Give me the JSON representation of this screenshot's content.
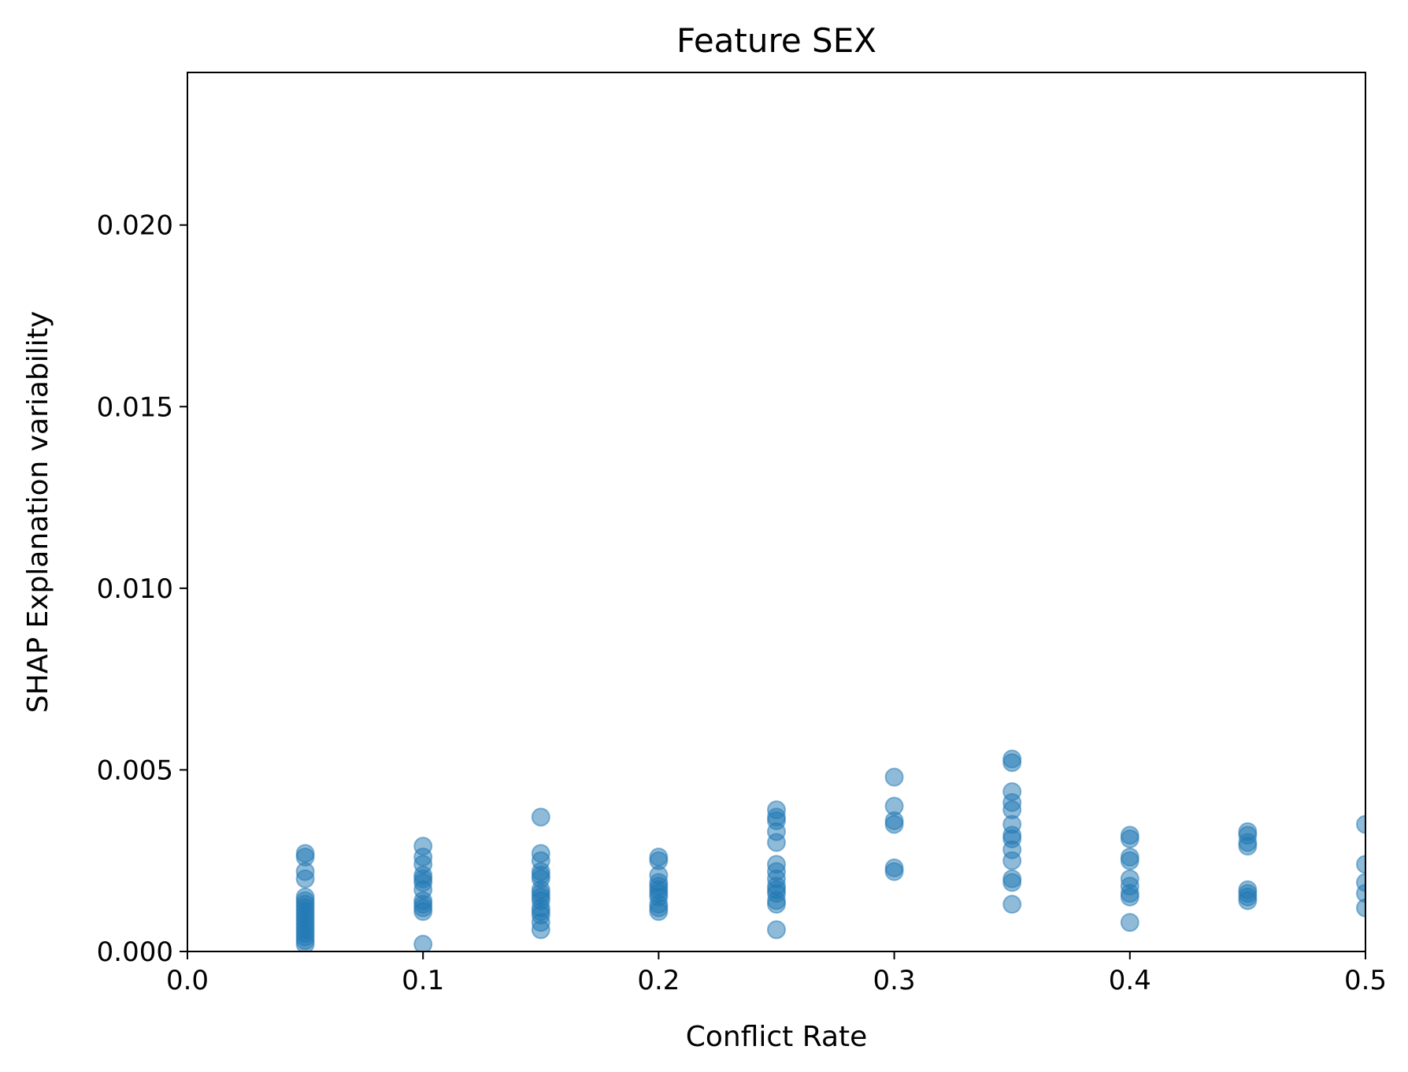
{
  "chart_data": {
    "type": "scatter",
    "title": "Feature SEX",
    "xlabel": "Conflict Rate",
    "ylabel": "SHAP Explanation variability",
    "xlim": [
      0.0,
      0.5
    ],
    "ylim": [
      0.0,
      0.0242
    ],
    "xticks": [
      {
        "value": 0.0,
        "label": "0.0"
      },
      {
        "value": 0.1,
        "label": "0.1"
      },
      {
        "value": 0.2,
        "label": "0.2"
      },
      {
        "value": 0.3,
        "label": "0.3"
      },
      {
        "value": 0.4,
        "label": "0.4"
      },
      {
        "value": 0.5,
        "label": "0.5"
      }
    ],
    "yticks": [
      {
        "value": 0.0,
        "label": "0.000"
      },
      {
        "value": 0.005,
        "label": "0.005"
      },
      {
        "value": 0.01,
        "label": "0.010"
      },
      {
        "value": 0.015,
        "label": "0.015"
      },
      {
        "value": 0.02,
        "label": "0.020"
      }
    ],
    "grid": false,
    "marker_color": "#1f77b4",
    "marker_alpha": 0.5,
    "points": [
      [
        0.05,
        0.0027
      ],
      [
        0.05,
        0.0026
      ],
      [
        0.05,
        0.0022
      ],
      [
        0.05,
        0.002
      ],
      [
        0.05,
        0.0015
      ],
      [
        0.05,
        0.0014
      ],
      [
        0.05,
        0.0013
      ],
      [
        0.05,
        0.0012
      ],
      [
        0.05,
        0.0011
      ],
      [
        0.05,
        0.001
      ],
      [
        0.05,
        0.0009
      ],
      [
        0.05,
        0.0008
      ],
      [
        0.05,
        0.0007
      ],
      [
        0.05,
        0.0006
      ],
      [
        0.05,
        0.0005
      ],
      [
        0.05,
        0.0004
      ],
      [
        0.05,
        0.0003
      ],
      [
        0.05,
        0.0002
      ],
      [
        0.1,
        0.0029
      ],
      [
        0.1,
        0.0026
      ],
      [
        0.1,
        0.0024
      ],
      [
        0.1,
        0.0021
      ],
      [
        0.1,
        0.002
      ],
      [
        0.1,
        0.0019
      ],
      [
        0.1,
        0.0017
      ],
      [
        0.1,
        0.0014
      ],
      [
        0.1,
        0.0013
      ],
      [
        0.1,
        0.0012
      ],
      [
        0.1,
        0.0011
      ],
      [
        0.1,
        0.0002
      ],
      [
        0.15,
        0.0037
      ],
      [
        0.15,
        0.0027
      ],
      [
        0.15,
        0.0025
      ],
      [
        0.15,
        0.0022
      ],
      [
        0.15,
        0.0021
      ],
      [
        0.15,
        0.002
      ],
      [
        0.15,
        0.0017
      ],
      [
        0.15,
        0.0016
      ],
      [
        0.15,
        0.0015
      ],
      [
        0.15,
        0.0014
      ],
      [
        0.15,
        0.0012
      ],
      [
        0.15,
        0.0011
      ],
      [
        0.15,
        0.001
      ],
      [
        0.15,
        0.0008
      ],
      [
        0.15,
        0.0006
      ],
      [
        0.2,
        0.0026
      ],
      [
        0.2,
        0.0025
      ],
      [
        0.2,
        0.0021
      ],
      [
        0.2,
        0.0019
      ],
      [
        0.2,
        0.0018
      ],
      [
        0.2,
        0.0017
      ],
      [
        0.2,
        0.0016
      ],
      [
        0.2,
        0.0015
      ],
      [
        0.2,
        0.0013
      ],
      [
        0.2,
        0.0012
      ],
      [
        0.2,
        0.0011
      ],
      [
        0.25,
        0.0039
      ],
      [
        0.25,
        0.0037
      ],
      [
        0.25,
        0.0036
      ],
      [
        0.25,
        0.0033
      ],
      [
        0.25,
        0.003
      ],
      [
        0.25,
        0.0024
      ],
      [
        0.25,
        0.0022
      ],
      [
        0.25,
        0.002
      ],
      [
        0.25,
        0.0018
      ],
      [
        0.25,
        0.0017
      ],
      [
        0.25,
        0.0016
      ],
      [
        0.25,
        0.0014
      ],
      [
        0.25,
        0.0013
      ],
      [
        0.25,
        0.0006
      ],
      [
        0.3,
        0.0048
      ],
      [
        0.3,
        0.004
      ],
      [
        0.3,
        0.0036
      ],
      [
        0.3,
        0.0035
      ],
      [
        0.3,
        0.0023
      ],
      [
        0.3,
        0.0022
      ],
      [
        0.35,
        0.0053
      ],
      [
        0.35,
        0.0052
      ],
      [
        0.35,
        0.0044
      ],
      [
        0.35,
        0.0041
      ],
      [
        0.35,
        0.0039
      ],
      [
        0.35,
        0.0035
      ],
      [
        0.35,
        0.0032
      ],
      [
        0.35,
        0.0031
      ],
      [
        0.35,
        0.0028
      ],
      [
        0.35,
        0.0025
      ],
      [
        0.35,
        0.002
      ],
      [
        0.35,
        0.0019
      ],
      [
        0.35,
        0.0013
      ],
      [
        0.4,
        0.0032
      ],
      [
        0.4,
        0.0031
      ],
      [
        0.4,
        0.0026
      ],
      [
        0.4,
        0.0025
      ],
      [
        0.4,
        0.002
      ],
      [
        0.4,
        0.0018
      ],
      [
        0.4,
        0.0016
      ],
      [
        0.4,
        0.0015
      ],
      [
        0.4,
        0.0008
      ],
      [
        0.45,
        0.0033
      ],
      [
        0.45,
        0.0032
      ],
      [
        0.45,
        0.003
      ],
      [
        0.45,
        0.0029
      ],
      [
        0.45,
        0.0017
      ],
      [
        0.45,
        0.0016
      ],
      [
        0.45,
        0.0015
      ],
      [
        0.45,
        0.0014
      ],
      [
        0.5,
        0.0035
      ],
      [
        0.5,
        0.0024
      ],
      [
        0.5,
        0.0019
      ],
      [
        0.5,
        0.0016
      ],
      [
        0.5,
        0.0012
      ]
    ]
  }
}
